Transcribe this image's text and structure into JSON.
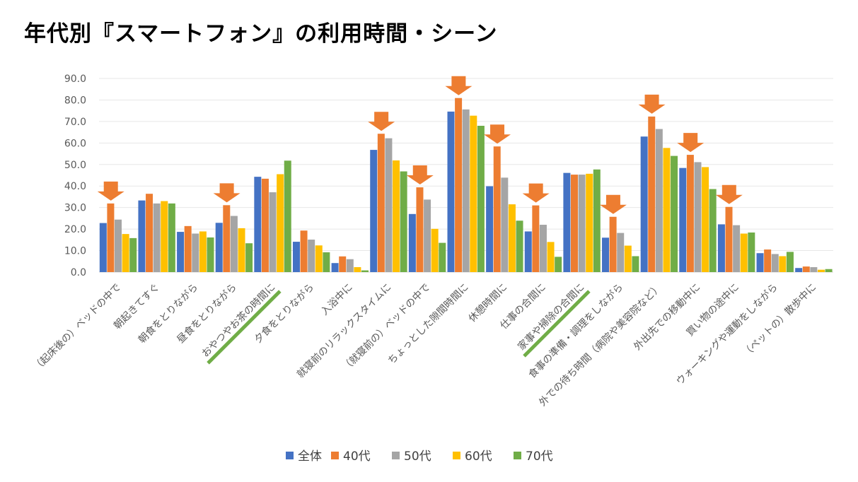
{
  "title": "年代別『スマートフォン』の利用時間・シーン",
  "chart_data": {
    "type": "bar",
    "title": "年代別『スマートフォン』の利用時間・シーン",
    "xlabel": "",
    "ylabel": "",
    "ylim": [
      0,
      90
    ],
    "yticks": [
      "0.0",
      "10.0",
      "20.0",
      "30.0",
      "40.0",
      "50.0",
      "60.0",
      "70.0",
      "80.0",
      "90.0"
    ],
    "grid": true,
    "legend_position": "bottom",
    "categories": [
      "（起床後の）ベッドの中で",
      "朝起きてすぐ",
      "朝食をとりながら",
      "昼食をとりながら",
      "おやつやお茶の時間に",
      "夕食をとりながら",
      "入浴中に",
      "就寝前のリラックスタイムに",
      "（就寝前の）ベッドの中で",
      "ちょっとした隙間時間に",
      "休憩時間に",
      "仕事の合間に",
      "家事や掃除の合間に",
      "食事の準備・調理をしながら",
      "外での待ち時間（病院や美容院など）",
      "外出先での移動中に",
      "買い物の途中に",
      "ウォーキングや運動をしながら",
      "（ペットの）散歩中に"
    ],
    "series": [
      {
        "name": "全体",
        "color": "#4472c4",
        "values": [
          22.8,
          33.3,
          18.7,
          22.9,
          44.3,
          14.1,
          4.2,
          56.8,
          27.0,
          74.6,
          39.9,
          18.9,
          46.1,
          16.0,
          63.0,
          48.4,
          22.2,
          8.8,
          1.9
        ]
      },
      {
        "name": "40代",
        "color": "#ed7d31",
        "values": [
          31.9,
          36.4,
          21.4,
          31.1,
          43.4,
          19.3,
          7.3,
          64.3,
          39.4,
          80.9,
          58.4,
          31.0,
          45.3,
          25.7,
          72.3,
          54.5,
          30.3,
          10.5,
          2.6
        ]
      },
      {
        "name": "50代",
        "color": "#a5a5a5",
        "values": [
          24.4,
          31.9,
          17.9,
          26.1,
          37.1,
          15.1,
          6.0,
          62.2,
          33.7,
          75.6,
          43.9,
          22.0,
          45.3,
          18.2,
          66.5,
          51.1,
          21.8,
          8.4,
          2.3
        ]
      },
      {
        "name": "60代",
        "color": "#ffc000",
        "values": [
          17.7,
          33.0,
          18.9,
          20.4,
          45.5,
          12.4,
          2.3,
          51.9,
          20.1,
          72.7,
          31.5,
          14.0,
          45.7,
          12.3,
          57.7,
          48.8,
          17.9,
          7.4,
          1.1
        ]
      },
      {
        "name": "70代",
        "color": "#70ad47",
        "values": [
          15.8,
          31.9,
          16.1,
          13.4,
          51.8,
          9.2,
          0.8,
          46.8,
          13.6,
          68.0,
          23.9,
          7.1,
          47.7,
          7.4,
          54.0,
          38.6,
          18.4,
          9.4,
          1.4
        ]
      }
    ],
    "annotations": {
      "arrow_categories": [
        0,
        3,
        7,
        8,
        9,
        10,
        11,
        13,
        14,
        15,
        16
      ],
      "arrow_color": "#ed7d31",
      "underline_categories": [
        4,
        12
      ],
      "underline_color": "#70ad47"
    }
  }
}
